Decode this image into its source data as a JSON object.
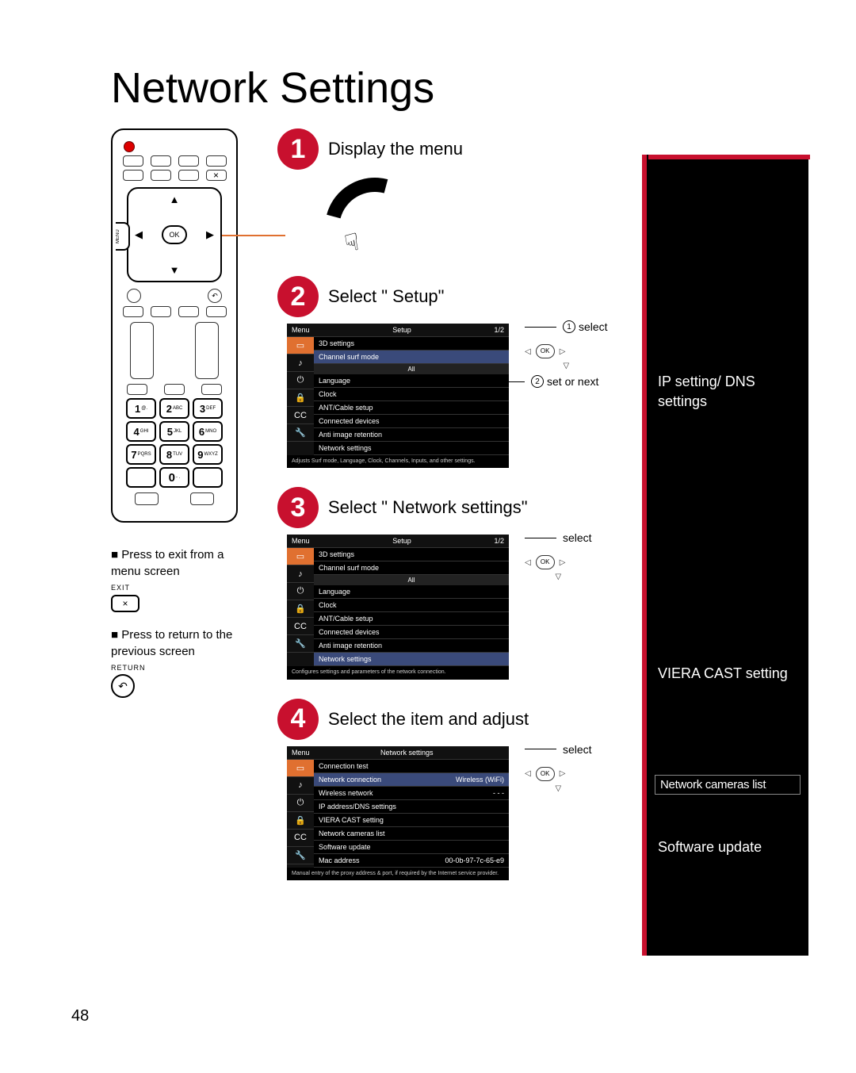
{
  "title": "Network Settings",
  "pageNumber": "48",
  "steps": {
    "s1": {
      "num": "1",
      "title": "Display the menu"
    },
    "s2": {
      "num": "2",
      "title": "Select \" Setup\""
    },
    "s3": {
      "num": "3",
      "title": "Select \" Network settings\""
    },
    "s4": {
      "num": "4",
      "title": "Select the item and adjust"
    }
  },
  "callouts": {
    "select1": "select",
    "setOrNext": "set or next",
    "select2": "select",
    "select3": "select",
    "c1": "1",
    "c2": "2"
  },
  "menu1": {
    "headLeft": "Menu",
    "headCenter": "Setup",
    "headRight": "1/2",
    "rows": [
      "3D settings",
      "Channel surf mode",
      "Language",
      "Clock",
      "ANT/Cable setup",
      "Connected devices",
      "Anti image retention",
      "Network settings"
    ],
    "sub": "All",
    "footer": "Adjusts Surf mode, Language, Clock, Channels, Inputs, and other settings."
  },
  "menu2": {
    "headLeft": "Menu",
    "headCenter": "Setup",
    "headRight": "1/2",
    "rows": [
      "3D settings",
      "Channel surf mode",
      "Language",
      "Clock",
      "ANT/Cable setup",
      "Connected devices",
      "Anti image retention",
      "Network settings"
    ],
    "sub": "All",
    "footer": "Configures settings and parameters of the network connection."
  },
  "menu3": {
    "headLeft": "Menu",
    "headCenter": "Network settings",
    "headRight": "",
    "rows": [
      "Connection test",
      "Network connection",
      "Wireless network",
      "IP address/DNS settings",
      "VIERA CAST setting",
      "Network cameras list",
      "Software update",
      "Mac address"
    ],
    "netConnVal": "Wireless (WiFi)",
    "wirelessVal": "- - -",
    "macVal": "00-0b-97-7c-65-e9",
    "footer": "Manual entry of the proxy address & port, if required by the Internet service provider."
  },
  "remoteNotes": {
    "exit": "Press to exit from a menu screen",
    "exitLabel": "EXIT",
    "return": "Press to return to the previous screen",
    "returnLabel": "RETURN",
    "menuLabel": "MENU",
    "ok": "OK"
  },
  "numpad": {
    "r1": [
      {
        "n": "1",
        "s": "@."
      },
      {
        "n": "2",
        "s": "ABC"
      },
      {
        "n": "3",
        "s": "DEF"
      }
    ],
    "r2": [
      {
        "n": "4",
        "s": "GHI"
      },
      {
        "n": "5",
        "s": "JKL"
      },
      {
        "n": "6",
        "s": "MNO"
      }
    ],
    "r3": [
      {
        "n": "7",
        "s": "PQRS"
      },
      {
        "n": "8",
        "s": "TUV"
      },
      {
        "n": "9",
        "s": "WXYZ"
      }
    ],
    "r4": [
      {
        "n": "",
        "s": ""
      },
      {
        "n": "0",
        "s": "- ."
      },
      {
        "n": "",
        "s": ""
      }
    ]
  },
  "sidebar": {
    "ipdns": "IP setting/ DNS settings",
    "viera": "VIERA CAST setting",
    "cameras": "Network cameras list",
    "software": "Software update"
  },
  "colors": {
    "accent": "#c8102e",
    "menuSelect": "#3a4a7a",
    "iconSelect": "#e07030"
  }
}
